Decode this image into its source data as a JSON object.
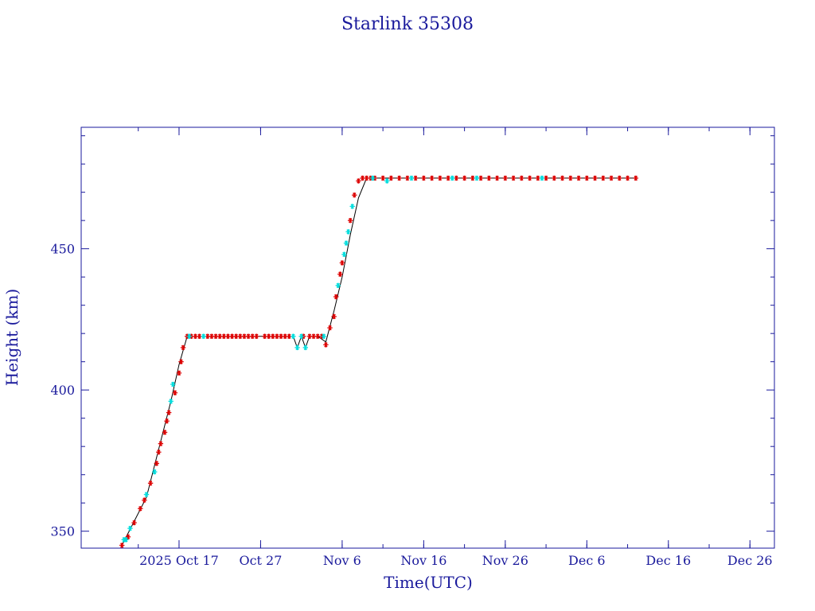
{
  "chart_data": {
    "type": "scatter",
    "title": "Starlink 35308",
    "xlabel": "Time(UTC)",
    "ylabel": "Height (km)",
    "x_is_date": true,
    "xlim": [
      "2025-10-05",
      "2025-12-29"
    ],
    "ylim": [
      344,
      493
    ],
    "x_ticks": [
      {
        "date": "2025-10-17",
        "label": "2025 Oct 17"
      },
      {
        "date": "2025-10-27",
        "label": "Oct 27"
      },
      {
        "date": "2025-11-06",
        "label": "Nov  6"
      },
      {
        "date": "2025-11-16",
        "label": "Nov 16"
      },
      {
        "date": "2025-11-26",
        "label": "Nov 26"
      },
      {
        "date": "2025-12-06",
        "label": "Dec  6"
      },
      {
        "date": "2025-12-16",
        "label": "Dec 16"
      },
      {
        "date": "2025-12-26",
        "label": "Dec 26"
      }
    ],
    "y_ticks": [
      350,
      400,
      450
    ],
    "y_minor_step": 10,
    "x_minor_days": [
      7,
      12,
      22,
      32,
      37,
      42,
      47,
      52,
      57,
      62,
      67,
      72,
      77,
      82
    ],
    "grid": false,
    "legend": "none",
    "colors": {
      "text": "#1a1a9c",
      "axes": "#1a1a9c",
      "line": "#000000",
      "marker_primary": "#dd0000",
      "marker_secondary": "#00dddd"
    },
    "line_series": [
      {
        "x": "2025-10-10",
        "y": 345
      },
      {
        "x": "2025-10-13",
        "y": 362
      },
      {
        "x": "2025-10-16",
        "y": 396
      },
      {
        "x": "2025-10-17",
        "y": 409
      },
      {
        "x": "2025-10-18",
        "y": 419
      },
      {
        "x": "2025-10-31",
        "y": 419
      },
      {
        "x": "2025-10-31T12:00",
        "y": 415
      },
      {
        "x": "2025-11-01",
        "y": 419
      },
      {
        "x": "2025-11-01T12:00",
        "y": 415
      },
      {
        "x": "2025-11-02",
        "y": 419
      },
      {
        "x": "2025-11-03",
        "y": 419
      },
      {
        "x": "2025-11-04",
        "y": 417
      },
      {
        "x": "2025-11-05",
        "y": 428
      },
      {
        "x": "2025-11-06",
        "y": 440
      },
      {
        "x": "2025-11-07",
        "y": 455
      },
      {
        "x": "2025-11-08",
        "y": 468
      },
      {
        "x": "2025-11-09",
        "y": 475
      },
      {
        "x": "2025-12-12",
        "y": 475
      }
    ],
    "series": [
      {
        "color": "#dd0000",
        "points": [
          {
            "x": "2025-10-10",
            "y": 345
          },
          {
            "x": "2025-10-10T18:00",
            "y": 348
          },
          {
            "x": "2025-10-11T12:00",
            "y": 353
          },
          {
            "x": "2025-10-12T06:00",
            "y": 358
          },
          {
            "x": "2025-10-12T18:00",
            "y": 361
          },
          {
            "x": "2025-10-13T12:00",
            "y": 367
          },
          {
            "x": "2025-10-14T06:00",
            "y": 374
          },
          {
            "x": "2025-10-14T12:00",
            "y": 378
          },
          {
            "x": "2025-10-14T18:00",
            "y": 381
          },
          {
            "x": "2025-10-15T06:00",
            "y": 385
          },
          {
            "x": "2025-10-15T12:00",
            "y": 389
          },
          {
            "x": "2025-10-15T18:00",
            "y": 392
          },
          {
            "x": "2025-10-16T12:00",
            "y": 399
          },
          {
            "x": "2025-10-17",
            "y": 406
          },
          {
            "x": "2025-10-17T06:00",
            "y": 410
          },
          {
            "x": "2025-10-17T12:00",
            "y": 415
          },
          {
            "x": "2025-10-18",
            "y": 419
          },
          {
            "x": "2025-10-18T12:00",
            "y": 419
          },
          {
            "x": "2025-10-19",
            "y": 419
          },
          {
            "x": "2025-10-19T12:00",
            "y": 419
          },
          {
            "x": "2025-10-20T12:00",
            "y": 419
          },
          {
            "x": "2025-10-21",
            "y": 419
          },
          {
            "x": "2025-10-21T12:00",
            "y": 419
          },
          {
            "x": "2025-10-22",
            "y": 419
          },
          {
            "x": "2025-10-22T12:00",
            "y": 419
          },
          {
            "x": "2025-10-23",
            "y": 419
          },
          {
            "x": "2025-10-23T12:00",
            "y": 419
          },
          {
            "x": "2025-10-24",
            "y": 419
          },
          {
            "x": "2025-10-24T12:00",
            "y": 419
          },
          {
            "x": "2025-10-25",
            "y": 419
          },
          {
            "x": "2025-10-25T12:00",
            "y": 419
          },
          {
            "x": "2025-10-26",
            "y": 419
          },
          {
            "x": "2025-10-26T12:00",
            "y": 419
          },
          {
            "x": "2025-10-27T12:00",
            "y": 419
          },
          {
            "x": "2025-10-28",
            "y": 419
          },
          {
            "x": "2025-10-28T12:00",
            "y": 419
          },
          {
            "x": "2025-10-29",
            "y": 419
          },
          {
            "x": "2025-10-29T12:00",
            "y": 419
          },
          {
            "x": "2025-10-30",
            "y": 419
          },
          {
            "x": "2025-10-30T12:00",
            "y": 419
          },
          {
            "x": "2025-11-01T06:00",
            "y": 419
          },
          {
            "x": "2025-11-02",
            "y": 419
          },
          {
            "x": "2025-11-02T12:00",
            "y": 419
          },
          {
            "x": "2025-11-03",
            "y": 419
          },
          {
            "x": "2025-11-03T12:00",
            "y": 419
          },
          {
            "x": "2025-11-04",
            "y": 416
          },
          {
            "x": "2025-11-04T12:00",
            "y": 422
          },
          {
            "x": "2025-11-05",
            "y": 426
          },
          {
            "x": "2025-11-05T06:00",
            "y": 433
          },
          {
            "x": "2025-11-05T18:00",
            "y": 441
          },
          {
            "x": "2025-11-06",
            "y": 445
          },
          {
            "x": "2025-11-07",
            "y": 460
          },
          {
            "x": "2025-11-07T12:00",
            "y": 469
          },
          {
            "x": "2025-11-08",
            "y": 474
          },
          {
            "x": "2025-11-08T12:00",
            "y": 475
          },
          {
            "x": "2025-11-09",
            "y": 475
          },
          {
            "x": "2025-11-09T12:00",
            "y": 475
          },
          {
            "x": "2025-11-10",
            "y": 475
          },
          {
            "x": "2025-11-11",
            "y": 475
          },
          {
            "x": "2025-11-12",
            "y": 475
          },
          {
            "x": "2025-11-13",
            "y": 475
          },
          {
            "x": "2025-11-14",
            "y": 475
          },
          {
            "x": "2025-11-15",
            "y": 475
          },
          {
            "x": "2025-11-16",
            "y": 475
          },
          {
            "x": "2025-11-17",
            "y": 475
          },
          {
            "x": "2025-11-18",
            "y": 475
          },
          {
            "x": "2025-11-19",
            "y": 475
          },
          {
            "x": "2025-11-20",
            "y": 475
          },
          {
            "x": "2025-11-21",
            "y": 475
          },
          {
            "x": "2025-11-22",
            "y": 475
          },
          {
            "x": "2025-11-23",
            "y": 475
          },
          {
            "x": "2025-11-24",
            "y": 475
          },
          {
            "x": "2025-11-25",
            "y": 475
          },
          {
            "x": "2025-11-26",
            "y": 475
          },
          {
            "x": "2025-11-27",
            "y": 475
          },
          {
            "x": "2025-11-28",
            "y": 475
          },
          {
            "x": "2025-11-29",
            "y": 475
          },
          {
            "x": "2025-11-30",
            "y": 475
          },
          {
            "x": "2025-12-01",
            "y": 475
          },
          {
            "x": "2025-12-02",
            "y": 475
          },
          {
            "x": "2025-12-03",
            "y": 475
          },
          {
            "x": "2025-12-04",
            "y": 475
          },
          {
            "x": "2025-12-05",
            "y": 475
          },
          {
            "x": "2025-12-06",
            "y": 475
          },
          {
            "x": "2025-12-07",
            "y": 475
          },
          {
            "x": "2025-12-08",
            "y": 475
          },
          {
            "x": "2025-12-09",
            "y": 475
          },
          {
            "x": "2025-12-10",
            "y": 475
          },
          {
            "x": "2025-12-11",
            "y": 475
          },
          {
            "x": "2025-12-12",
            "y": 475
          }
        ]
      },
      {
        "color": "#00dddd",
        "points": [
          {
            "x": "2025-10-10T06:00",
            "y": 347
          },
          {
            "x": "2025-10-10T12:00",
            "y": 347
          },
          {
            "x": "2025-10-11",
            "y": 351
          },
          {
            "x": "2025-10-13",
            "y": 363
          },
          {
            "x": "2025-10-14",
            "y": 371
          },
          {
            "x": "2025-10-16",
            "y": 396
          },
          {
            "x": "2025-10-16T06:00",
            "y": 402
          },
          {
            "x": "2025-10-18T06:00",
            "y": 419
          },
          {
            "x": "2025-10-20",
            "y": 419
          },
          {
            "x": "2025-10-31",
            "y": 419
          },
          {
            "x": "2025-10-31T12:00",
            "y": 415
          },
          {
            "x": "2025-11-01",
            "y": 419
          },
          {
            "x": "2025-11-01T12:00",
            "y": 415
          },
          {
            "x": "2025-11-03T18:00",
            "y": 419
          },
          {
            "x": "2025-11-05T12:00",
            "y": 437
          },
          {
            "x": "2025-11-06T06:00",
            "y": 448
          },
          {
            "x": "2025-11-06T12:00",
            "y": 452
          },
          {
            "x": "2025-11-06T18:00",
            "y": 456
          },
          {
            "x": "2025-11-07T06:00",
            "y": 465
          },
          {
            "x": "2025-11-09T18:00",
            "y": 475
          },
          {
            "x": "2025-11-11T12:00",
            "y": 474
          },
          {
            "x": "2025-11-14T12:00",
            "y": 475
          },
          {
            "x": "2025-11-19T12:00",
            "y": 475
          },
          {
            "x": "2025-11-22T12:00",
            "y": 475
          },
          {
            "x": "2025-11-30T12:00",
            "y": 475
          }
        ]
      }
    ]
  }
}
